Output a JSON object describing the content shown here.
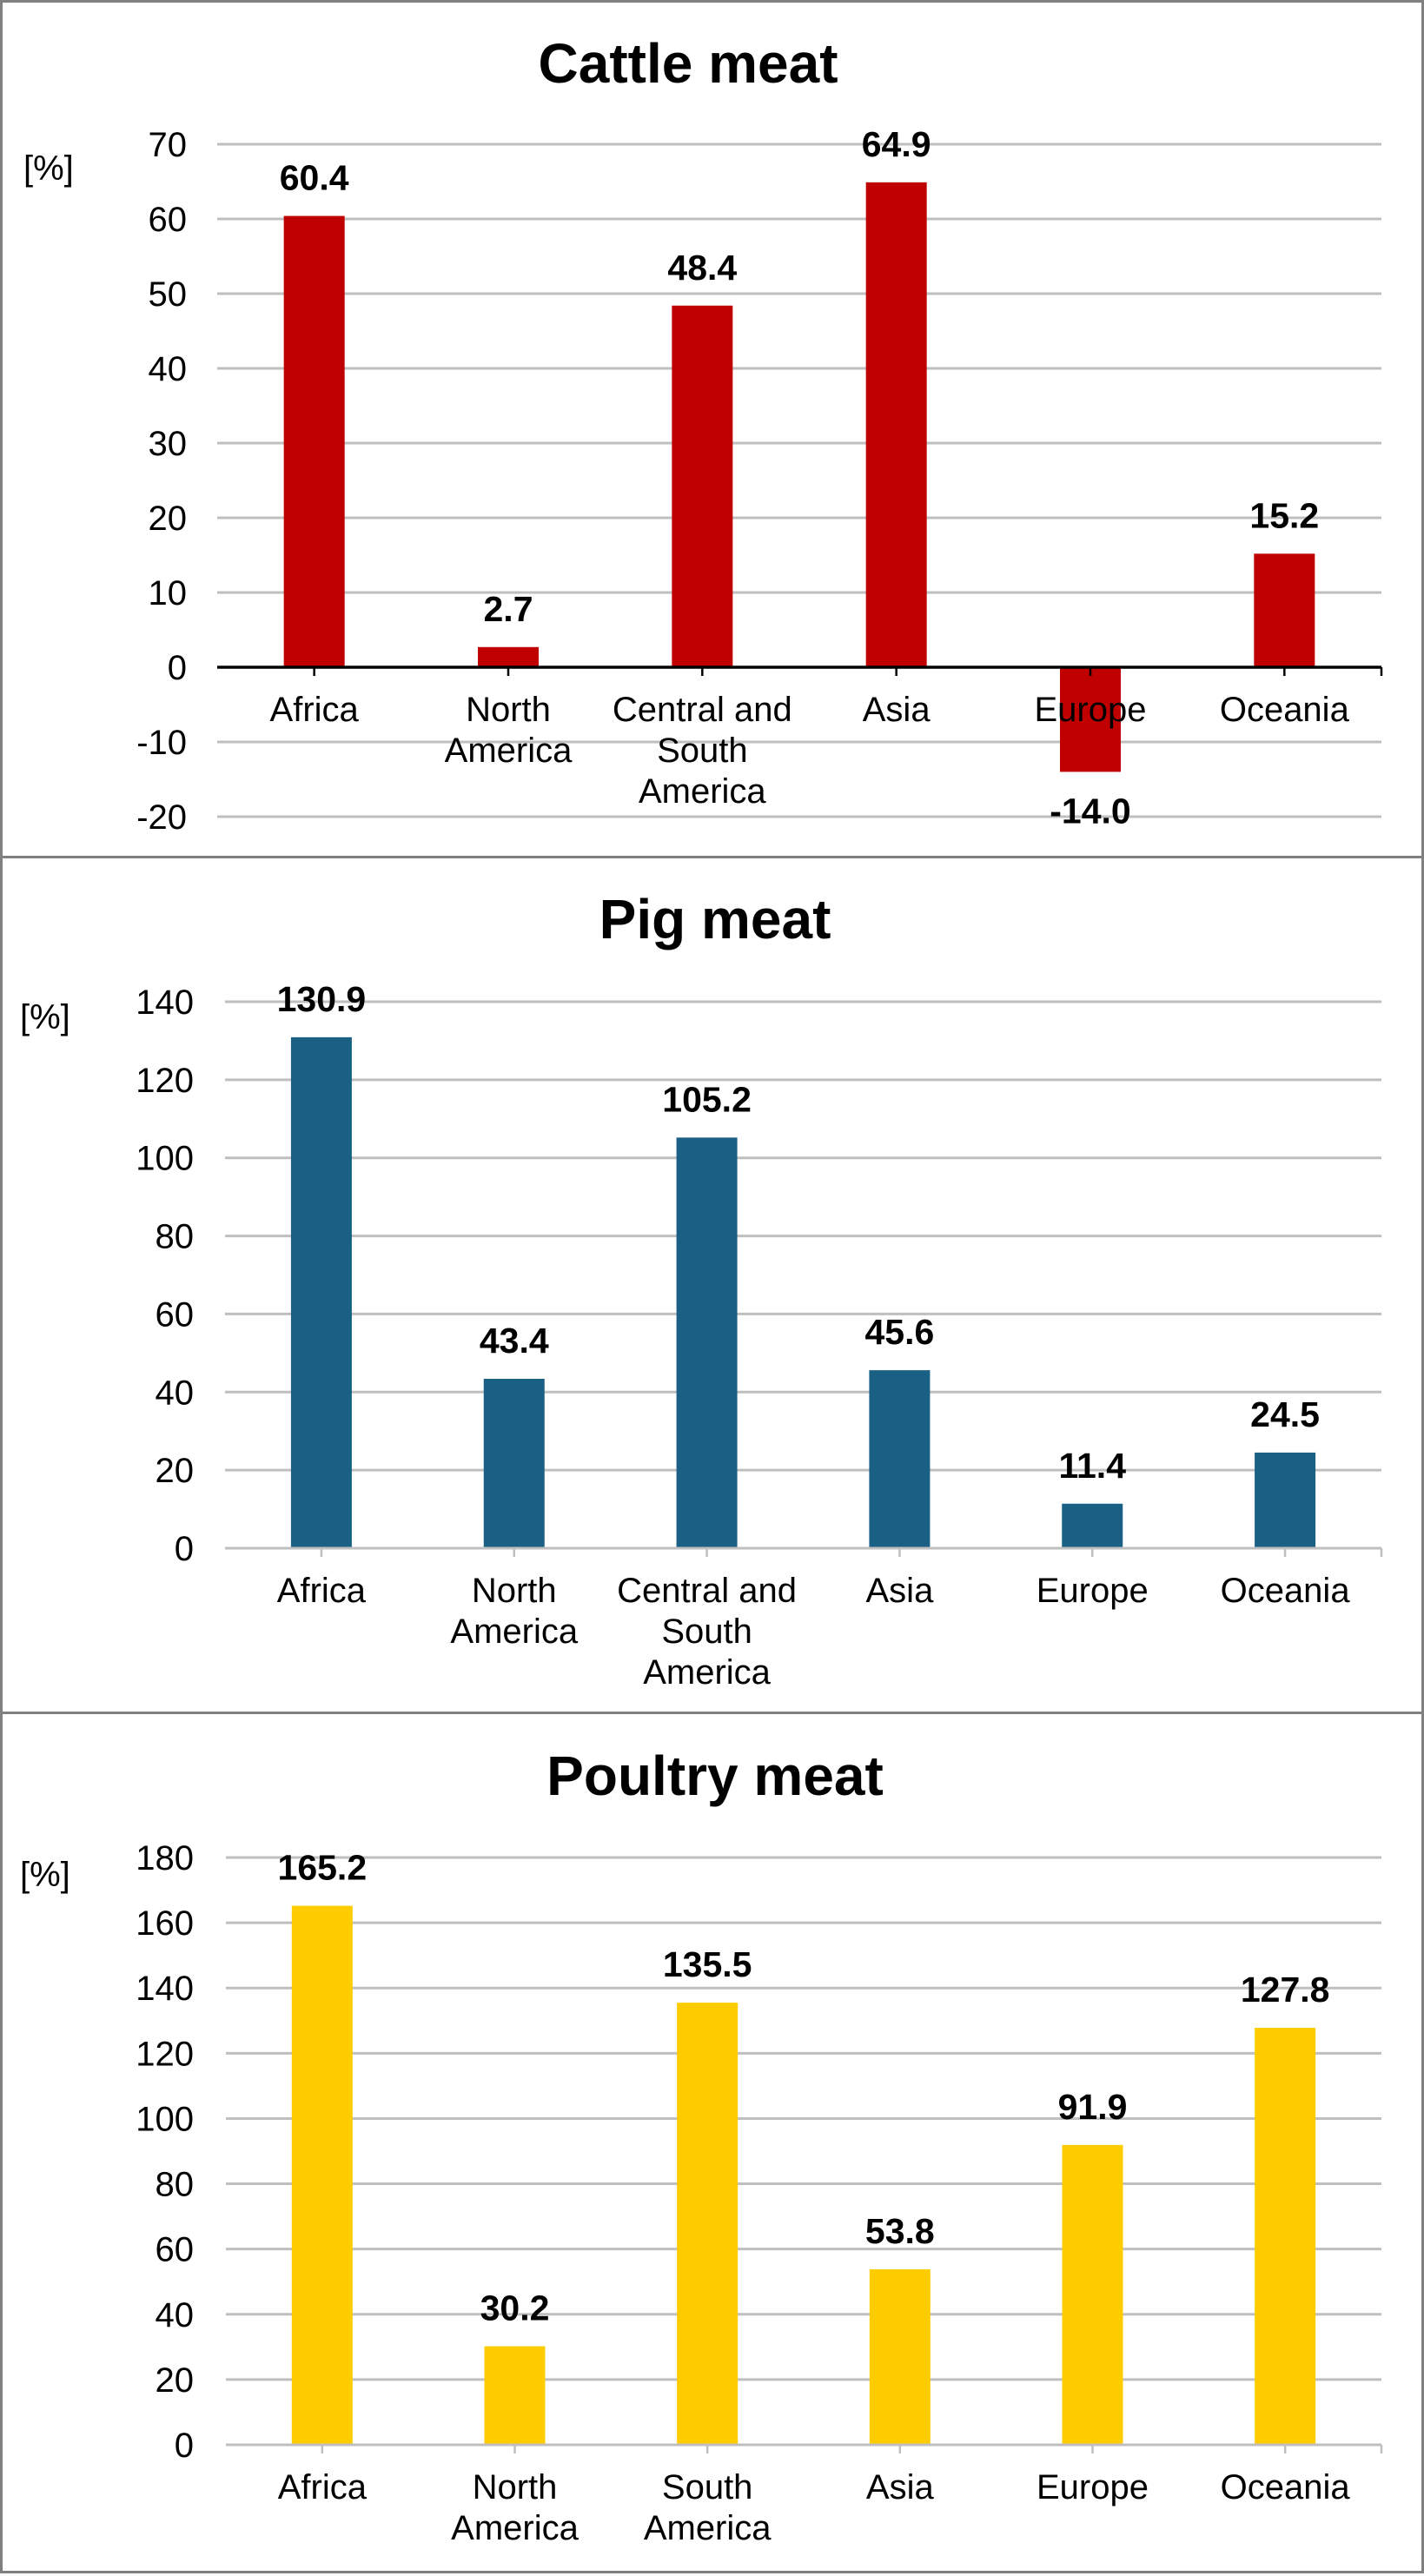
{
  "chart_data": [
    {
      "type": "bar",
      "title": "Cattle meat",
      "ylabel": "[%]",
      "xlabel": "",
      "categories": [
        [
          "Africa"
        ],
        [
          "North",
          "America"
        ],
        [
          "Central and",
          "South",
          "America"
        ],
        [
          "Asia"
        ],
        [
          "Europe"
        ],
        [
          "Oceania"
        ]
      ],
      "values": [
        60.4,
        2.7,
        48.4,
        64.9,
        -14.0,
        15.2
      ],
      "value_labels": [
        "60.4",
        "2.7",
        "48.4",
        "64.9",
        "-14.0",
        "15.2"
      ],
      "ylim": [
        -20,
        70
      ],
      "yticks": [
        -20,
        -10,
        0,
        10,
        20,
        30,
        40,
        50,
        60,
        70
      ],
      "grid": true,
      "legend": "none",
      "color": "#c00000",
      "axis_color": "#000000"
    },
    {
      "type": "bar",
      "title": "Pig meat",
      "ylabel": "[%]",
      "xlabel": "",
      "categories": [
        [
          "Africa"
        ],
        [
          "North",
          "America"
        ],
        [
          "Central and",
          "South",
          "America"
        ],
        [
          "Asia"
        ],
        [
          "Europe"
        ],
        [
          "Oceania"
        ]
      ],
      "values": [
        130.9,
        43.4,
        105.2,
        45.6,
        11.4,
        24.5
      ],
      "value_labels": [
        "130.9",
        "43.4",
        "105.2",
        "45.6",
        "11.4",
        "24.5"
      ],
      "ylim": [
        0,
        140
      ],
      "yticks": [
        0,
        20,
        40,
        60,
        80,
        100,
        120,
        140
      ],
      "grid": true,
      "legend": "none",
      "color": "#1a6085",
      "axis_color": "#bfbfbf"
    },
    {
      "type": "bar",
      "title": "Poultry meat",
      "ylabel": "[%]",
      "xlabel": "",
      "categories": [
        [
          "Africa"
        ],
        [
          "North",
          "America"
        ],
        [
          "South",
          "America"
        ],
        [
          "Asia"
        ],
        [
          "Europe"
        ],
        [
          "Oceania"
        ]
      ],
      "values": [
        165.2,
        30.2,
        135.5,
        53.8,
        91.9,
        127.8
      ],
      "value_labels": [
        "165.2",
        "30.2",
        "135.5",
        "53.8",
        "91.9",
        "127.8"
      ],
      "ylim": [
        0,
        180
      ],
      "yticks": [
        0,
        20,
        40,
        60,
        80,
        100,
        120,
        140,
        160,
        180
      ],
      "grid": true,
      "legend": "none",
      "color": "#ffcc00",
      "axis_color": "#bfbfbf"
    }
  ]
}
